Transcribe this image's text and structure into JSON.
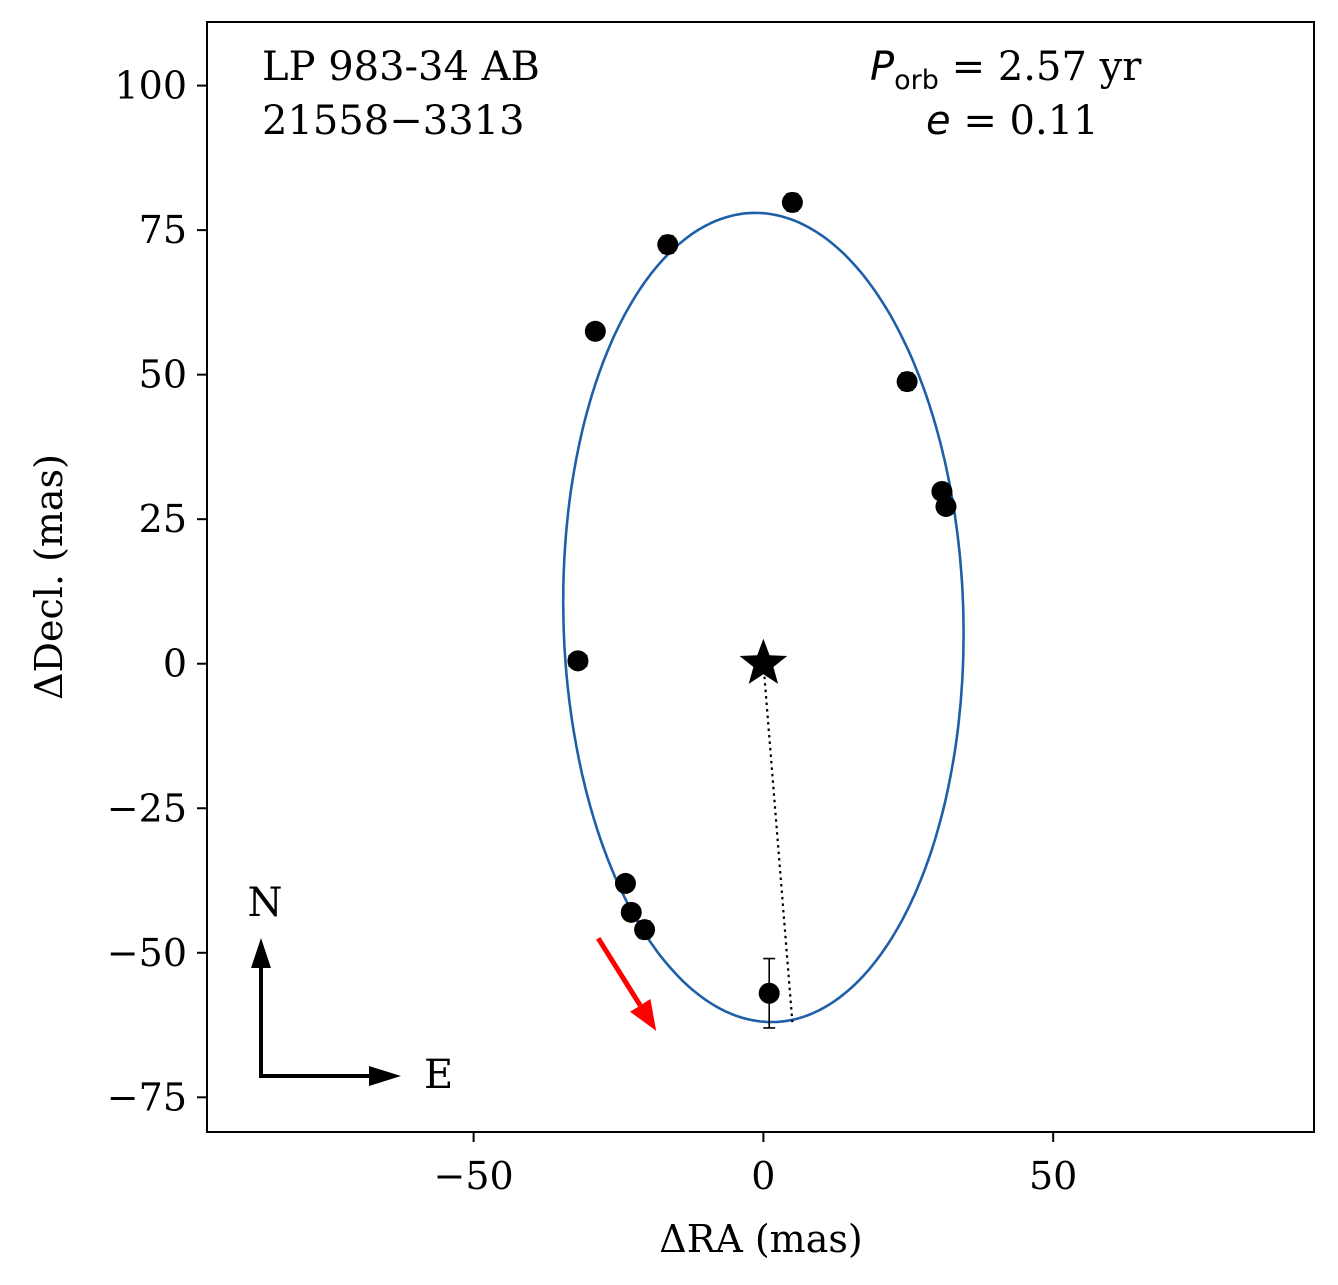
{
  "chart_data": {
    "type": "scatter",
    "title_lines": [
      "LP 983-34 AB",
      "21558−3313"
    ],
    "orbit_label": {
      "period_symbol": "P",
      "period_subscript": "orb",
      "period_text": " =  2.57 yr",
      "ecc_symbol": "e",
      "ecc_text": " = 0.11"
    },
    "xlabel": "ΔRA  (mas)",
    "ylabel": "ΔDecl.  (mas)",
    "xlim": [
      -96,
      95
    ],
    "ylim": [
      -81,
      111
    ],
    "xticks": [
      -50,
      0,
      50
    ],
    "xtick_labels": [
      "−50",
      "0",
      "50"
    ],
    "yticks": [
      -75,
      -50,
      -25,
      0,
      25,
      50,
      75,
      100
    ],
    "ytick_labels": [
      "−75",
      "−50",
      "−25",
      "0",
      "25",
      "50",
      "75",
      "100"
    ],
    "points": [
      {
        "x": -32.0,
        "y": 0.5,
        "xerr": 1.5,
        "yerr": 0.8
      },
      {
        "x": -29.0,
        "y": 57.5,
        "xerr": 1.0,
        "yerr": 1.0
      },
      {
        "x": -16.5,
        "y": 72.5,
        "xerr": 1.0,
        "yerr": 1.5
      },
      {
        "x": 5.0,
        "y": 79.8,
        "xerr": 1.0,
        "yerr": 1.5
      },
      {
        "x": 24.8,
        "y": 48.8,
        "xerr": 1.0,
        "yerr": 1.5
      },
      {
        "x": 30.8,
        "y": 29.8,
        "xerr": 0.8,
        "yerr": 0.8
      },
      {
        "x": 31.5,
        "y": 27.2,
        "xerr": 0.8,
        "yerr": 0.8
      },
      {
        "x": -23.8,
        "y": -38.0,
        "xerr": 1.0,
        "yerr": 1.0
      },
      {
        "x": -22.8,
        "y": -43.0,
        "xerr": 1.0,
        "yerr": 1.0
      },
      {
        "x": -20.5,
        "y": -46.0,
        "xerr": 1.0,
        "yerr": 1.5
      },
      {
        "x": 1.0,
        "y": -57.0,
        "xerr": 0.5,
        "yerr": 6.0
      }
    ],
    "primary_star": {
      "x": 0,
      "y": 0
    },
    "orbit": {
      "center_x": 0.0,
      "center_y": 8.0,
      "semi_axis_x": 34.5,
      "semi_axis_y": 70.0,
      "rotation_deg": 1.5,
      "color": "#1f5fa8"
    },
    "periastron_line": {
      "from": [
        0,
        0
      ],
      "to": [
        5.0,
        -62.0
      ]
    },
    "motion_arrow": {
      "from": [
        -28.5,
        -47.5
      ],
      "to": [
        -18.5,
        -63.5
      ],
      "color": "#ff0000"
    },
    "compass": {
      "north_label": "N",
      "east_label": "E"
    }
  }
}
